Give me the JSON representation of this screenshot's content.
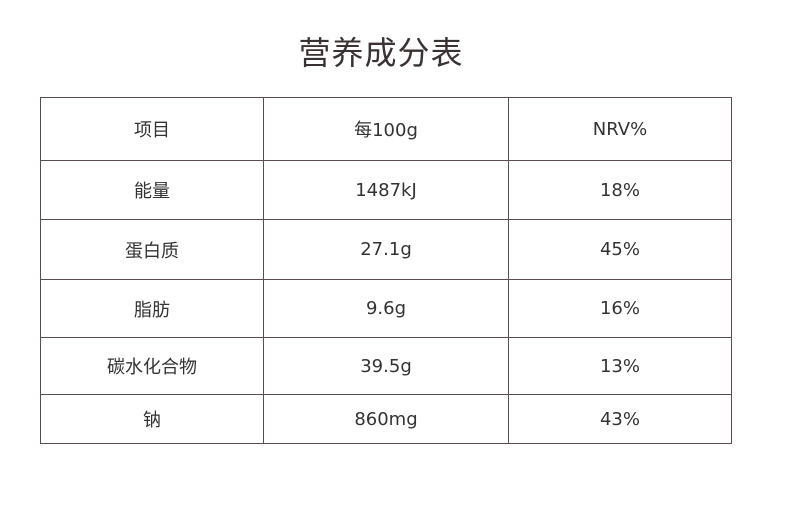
{
  "title": "营养成分表",
  "table": {
    "header": [
      "项目",
      "每100g",
      "NRV%"
    ],
    "rows": [
      [
        "能量",
        "1487kJ",
        "18%"
      ],
      [
        "蛋白质",
        "27.1g",
        "45%"
      ],
      [
        "脂肪",
        "9.6g",
        "16%"
      ],
      [
        "碳水化合物",
        "39.5g",
        "13%"
      ],
      [
        "钠",
        "860mg",
        "43%"
      ]
    ]
  }
}
